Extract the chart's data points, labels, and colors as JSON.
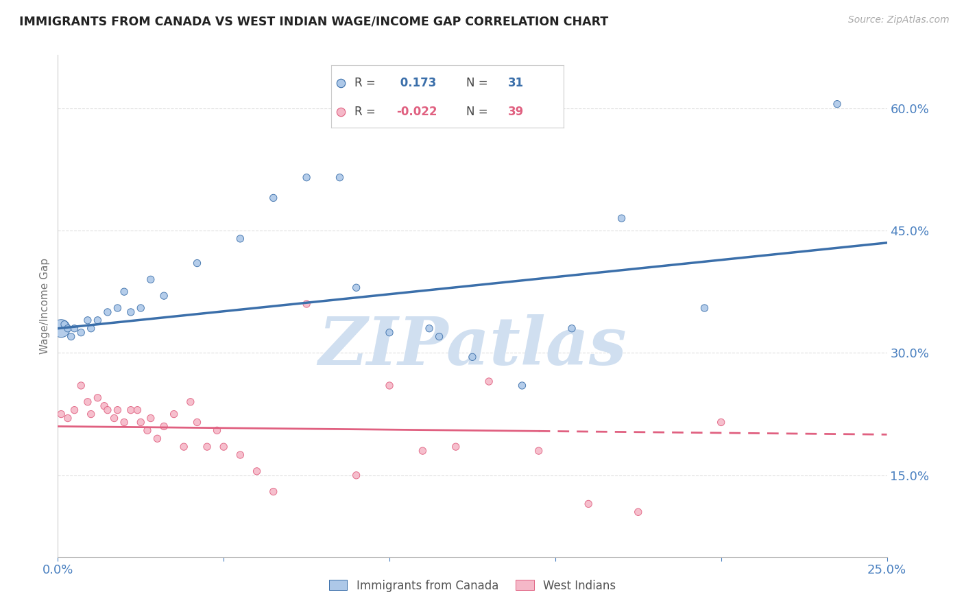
{
  "title": "IMMIGRANTS FROM CANADA VS WEST INDIAN WAGE/INCOME GAP CORRELATION CHART",
  "source": "Source: ZipAtlas.com",
  "ylabel": "Wage/Income Gap",
  "yticks": [
    0.15,
    0.3,
    0.45,
    0.6
  ],
  "ytick_labels": [
    "15.0%",
    "30.0%",
    "45.0%",
    "60.0%"
  ],
  "xlim": [
    0.0,
    0.25
  ],
  "ylim": [
    0.05,
    0.665
  ],
  "canada_R": 0.173,
  "canada_N": 31,
  "westindian_R": -0.022,
  "westindian_N": 39,
  "canada_color": "#adc8e8",
  "canada_line_color": "#3b6faa",
  "westindian_color": "#f5b8c8",
  "westindian_line_color": "#e06080",
  "background_color": "#ffffff",
  "grid_color": "#d0d0d0",
  "axis_label_color": "#4a80c0",
  "title_color": "#222222",
  "watermark_text": "ZIPatlas",
  "watermark_color": "#d0dff0",
  "canada_x": [
    0.001,
    0.002,
    0.003,
    0.004,
    0.005,
    0.007,
    0.009,
    0.01,
    0.012,
    0.015,
    0.018,
    0.02,
    0.022,
    0.025,
    0.028,
    0.032,
    0.042,
    0.055,
    0.065,
    0.075,
    0.085,
    0.09,
    0.1,
    0.112,
    0.115,
    0.125,
    0.14,
    0.155,
    0.17,
    0.195,
    0.235
  ],
  "canada_y": [
    0.33,
    0.335,
    0.33,
    0.32,
    0.33,
    0.325,
    0.34,
    0.33,
    0.34,
    0.35,
    0.355,
    0.375,
    0.35,
    0.355,
    0.39,
    0.37,
    0.41,
    0.44,
    0.49,
    0.515,
    0.515,
    0.38,
    0.325,
    0.33,
    0.32,
    0.295,
    0.26,
    0.33,
    0.465,
    0.355,
    0.605
  ],
  "canada_sizes": [
    55,
    55,
    55,
    55,
    55,
    55,
    55,
    55,
    55,
    55,
    55,
    55,
    55,
    55,
    55,
    55,
    55,
    55,
    55,
    55,
    55,
    55,
    55,
    55,
    55,
    55,
    55,
    55,
    55,
    55,
    55
  ],
  "canada_big_idx": 0,
  "canada_big_size": 350,
  "westindian_x": [
    0.001,
    0.003,
    0.005,
    0.007,
    0.009,
    0.01,
    0.012,
    0.014,
    0.015,
    0.017,
    0.018,
    0.02,
    0.022,
    0.024,
    0.025,
    0.027,
    0.028,
    0.03,
    0.032,
    0.035,
    0.038,
    0.04,
    0.042,
    0.045,
    0.048,
    0.05,
    0.055,
    0.06,
    0.065,
    0.075,
    0.09,
    0.1,
    0.11,
    0.12,
    0.13,
    0.145,
    0.16,
    0.175,
    0.2
  ],
  "westindian_y": [
    0.225,
    0.22,
    0.23,
    0.26,
    0.24,
    0.225,
    0.245,
    0.235,
    0.23,
    0.22,
    0.23,
    0.215,
    0.23,
    0.23,
    0.215,
    0.205,
    0.22,
    0.195,
    0.21,
    0.225,
    0.185,
    0.24,
    0.215,
    0.185,
    0.205,
    0.185,
    0.175,
    0.155,
    0.13,
    0.36,
    0.15,
    0.26,
    0.18,
    0.185,
    0.265,
    0.18,
    0.115,
    0.105,
    0.215
  ],
  "westindian_sizes": [
    55,
    55,
    55,
    55,
    55,
    55,
    55,
    55,
    55,
    55,
    55,
    55,
    55,
    55,
    55,
    55,
    55,
    55,
    55,
    55,
    55,
    55,
    55,
    55,
    55,
    55,
    55,
    55,
    55,
    55,
    55,
    55,
    55,
    55,
    55,
    55,
    55,
    55,
    55
  ],
  "wi_line_solid_end": 0.145,
  "wi_line_start_y": 0.21,
  "wi_line_end_y": 0.2
}
